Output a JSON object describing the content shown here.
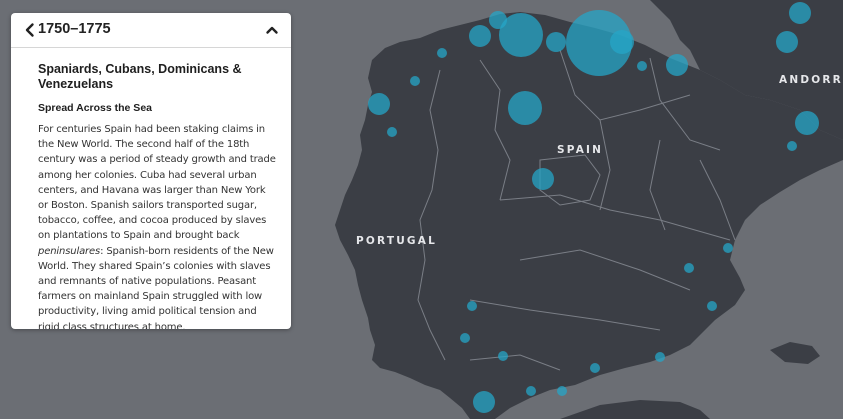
{
  "map": {
    "colors": {
      "sea": "#6b6e74",
      "land": "#3b3e45",
      "border": "#7a7e86",
      "marker": "#26a5c7"
    },
    "labels": {
      "spain": "SPAIN",
      "portugal": "PORTUGAL",
      "andorra": "ANDORRA"
    },
    "markers": [
      {
        "id": "m1",
        "size": "large"
      },
      {
        "id": "m2",
        "size": "large"
      },
      {
        "id": "m3",
        "size": "medium"
      },
      {
        "id": "m4",
        "size": "medium"
      },
      {
        "id": "m5",
        "size": "medium"
      },
      {
        "id": "m6",
        "size": "medium"
      },
      {
        "id": "m7",
        "size": "medium"
      },
      {
        "id": "m8",
        "size": "small"
      }
    ]
  },
  "panel": {
    "back_icon": "chevron-left-icon",
    "period": "1750–1775",
    "collapse_icon": "chevron-up-icon",
    "group_title": "Spaniards, Cubans, Dominicans & Venezuelans",
    "subheading": "Spread Across the Sea",
    "paragraph_before": "For centuries Spain had been staking claims in the New World. The second half of the 18th century was a period of steady growth and trade among her colonies. Cuba had several urban centers, and Havana was larger than New York or Boston. Spanish sailors transported sugar, tobacco, coffee, and cocoa produced by slaves on plantations to Spain and brought back ",
    "paragraph_emphasis": "peninsulares",
    "paragraph_after": ": Spanish-born residents of the New World. They shared Spain’s colonies with slaves and remnants of native populations. Peasant farmers on mainland Spain struggled with low productivity, living amid political tension and rigid class structures at home."
  }
}
